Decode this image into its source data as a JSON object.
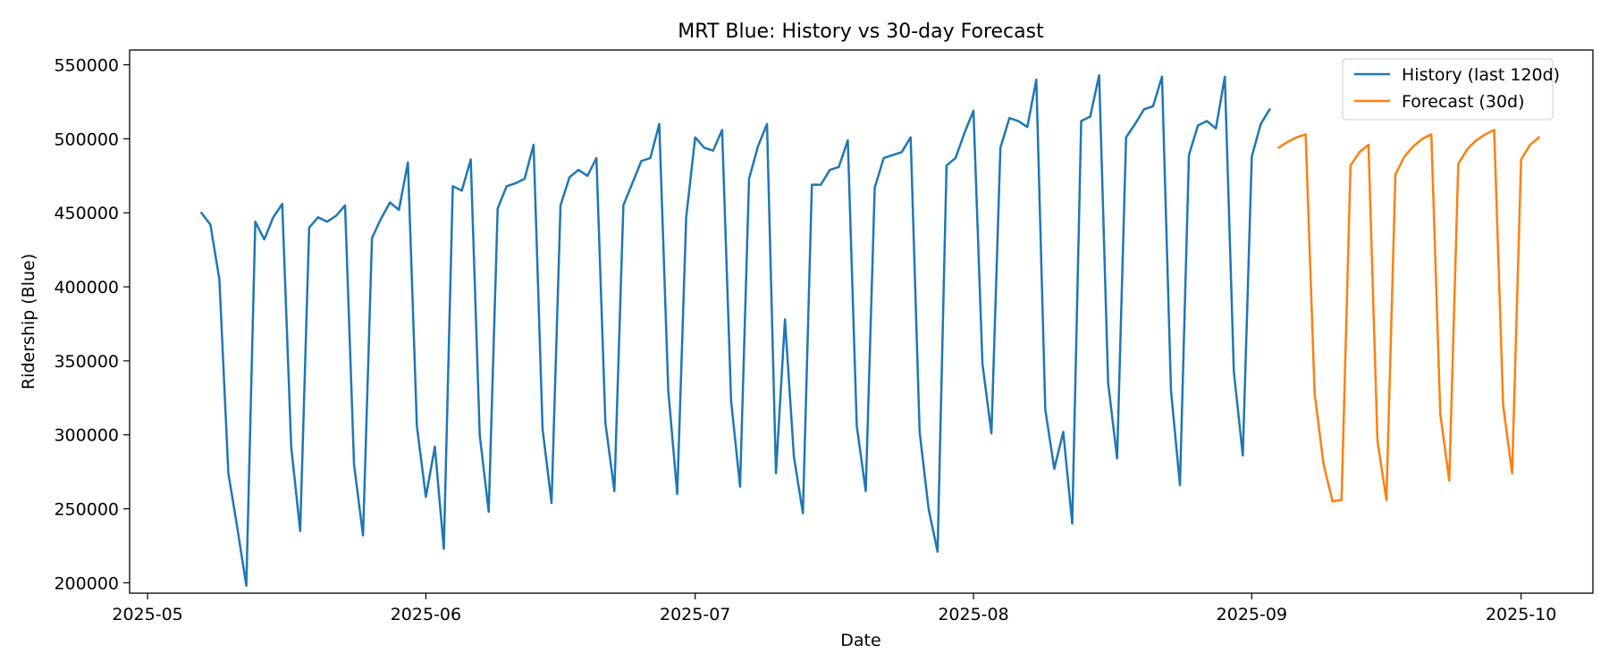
{
  "chart_data": {
    "type": "line",
    "title": "MRT Blue: History vs 30-day Forecast",
    "xlabel": "Date",
    "ylabel": "Ridership (Blue)",
    "xlim": [
      "2025-04-29",
      "2025-10-09"
    ],
    "ylim": [
      193000,
      560000
    ],
    "x_ticks": [
      {
        "date": "2025-05-01",
        "label": "2025-05"
      },
      {
        "date": "2025-06-01",
        "label": "2025-06"
      },
      {
        "date": "2025-07-01",
        "label": "2025-07"
      },
      {
        "date": "2025-08-01",
        "label": "2025-08"
      },
      {
        "date": "2025-09-01",
        "label": "2025-09"
      },
      {
        "date": "2025-10-01",
        "label": "2025-10"
      }
    ],
    "y_ticks": [
      200000,
      250000,
      300000,
      350000,
      400000,
      450000,
      500000,
      550000
    ],
    "y_tick_labels": [
      "200000",
      "250000",
      "300000",
      "350000",
      "400000",
      "450000",
      "500000",
      "550000"
    ],
    "grid": false,
    "legend_position": "top-right",
    "series": [
      {
        "name": "History (last 120d)",
        "color": "#1f77b4",
        "start": "2025-05-07",
        "values": [
          450000,
          442000,
          405000,
          274000,
          237000,
          198000,
          444000,
          432000,
          447000,
          456000,
          292000,
          235000,
          440000,
          447000,
          444000,
          448000,
          455000,
          280000,
          232000,
          433000,
          446000,
          457000,
          452000,
          484000,
          306000,
          258000,
          292000,
          223000,
          468000,
          465000,
          486000,
          300000,
          248000,
          453000,
          468000,
          470000,
          473000,
          496000,
          304000,
          254000,
          455000,
          474000,
          479000,
          475000,
          487000,
          308000,
          262000,
          455000,
          470000,
          485000,
          487000,
          510000,
          330000,
          260000,
          447000,
          501000,
          494000,
          492000,
          506000,
          323000,
          265000,
          473000,
          495000,
          510000,
          274000,
          378000,
          285000,
          247000,
          469000,
          469000,
          479000,
          481000,
          499000,
          306000,
          262000,
          467000,
          487000,
          489000,
          491000,
          501000,
          302000,
          250000,
          221000,
          482000,
          487000,
          504000,
          519000,
          348000,
          301000,
          494000,
          514000,
          512000,
          508000,
          540000,
          317000,
          277000,
          302000,
          240000,
          512000,
          515000,
          543000,
          335000,
          284000,
          501000,
          510000,
          520000,
          522000,
          542000,
          330000,
          266000,
          489000,
          509000,
          512000,
          507000,
          542000,
          343000,
          286000,
          488000,
          510000,
          520000
        ]
      },
      {
        "name": "Forecast (30d)",
        "color": "#ff7f0e",
        "start": "2025-09-04",
        "values": [
          494000,
          498000,
          501000,
          503000,
          328000,
          280000,
          255000,
          256000,
          482000,
          491000,
          496000,
          296000,
          256000,
          476000,
          488000,
          495000,
          500000,
          503000,
          314000,
          269000,
          483000,
          493000,
          499000,
          503000,
          506000,
          320000,
          274000,
          486000,
          496000,
          501000
        ]
      }
    ]
  }
}
